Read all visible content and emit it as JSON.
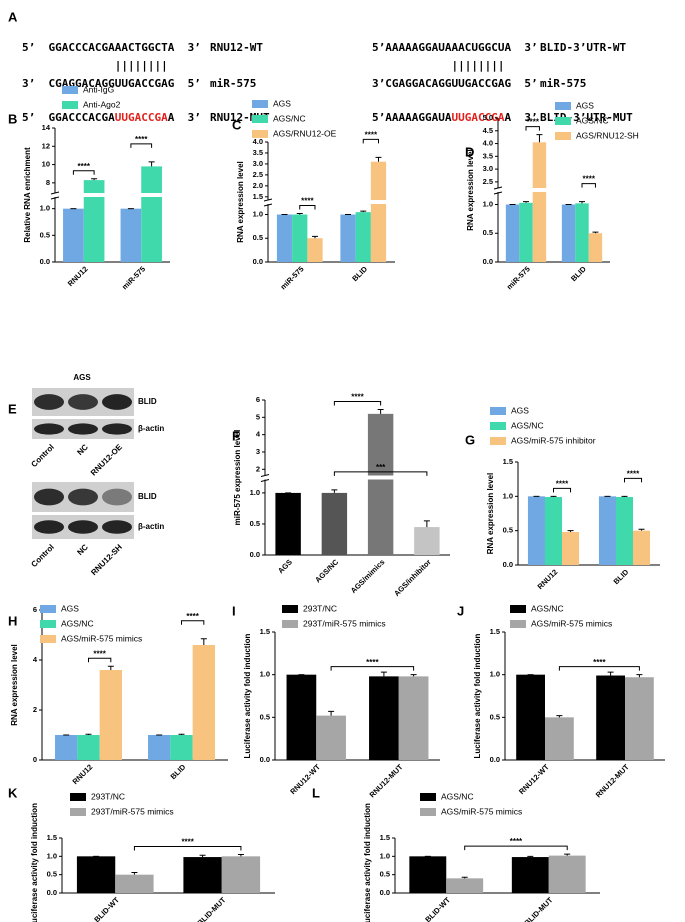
{
  "sequence_panel": {
    "label": "A",
    "groups": [
      {
        "rows": [
          {
            "segments": [
              {
                "text": "5’  GGACCCACGAAACTGGCTA  3’"
              }
            ],
            "name": "RNU12-WT"
          },
          {
            "segments": [
              {
                "text": "              ||||||||"
              }
            ]
          },
          {
            "segments": [
              {
                "text": "3’  CGAGGACAGGUUGACCGAG  5’"
              }
            ],
            "name": "miR-575"
          },
          {
            "segments": [
              {
                "text": "5’  GGACCCACGA"
              },
              {
                "text": "UUGACCGA",
                "color": "#e3211c"
              },
              {
                "text": "A  3’"
              }
            ],
            "name": "RNU12-MUT"
          }
        ]
      },
      {
        "rows": [
          {
            "segments": [
              {
                "text": "5’AAAAAGGAUAAACUGGCUA  3’"
              }
            ],
            "name": "BLID-3’UTR-WT"
          },
          {
            "segments": [
              {
                "text": "            ||||||||"
              }
            ]
          },
          {
            "segments": [
              {
                "text": "3’CGAGGACAGGUUGACCGAG  5’"
              }
            ],
            "name": "miR-575"
          },
          {
            "segments": [
              {
                "text": "5’AAAAAGGAUA"
              },
              {
                "text": "UUGACCGA",
                "color": "#e3211c"
              },
              {
                "text": "A  3’"
              }
            ],
            "name": "BLID-3’UTR-MUT"
          }
        ]
      }
    ]
  },
  "blot_panel": {
    "label": "E",
    "title": "AGS",
    "blots": [
      {
        "rows": [
          "BLID",
          "β-actin"
        ],
        "lanes": [
          "Control",
          "NC",
          "RNU12-OE"
        ]
      },
      {
        "rows": [
          "BLID",
          "β-actin"
        ],
        "lanes": [
          "Control",
          "NC",
          "RNU12-SH"
        ]
      }
    ]
  },
  "chart_data": [
    {
      "label": "B",
      "type": "bar",
      "ylabel": "Relative RNA enrichment",
      "categories": [
        "RNU12",
        "miR-575"
      ],
      "series": [
        {
          "name": "Anti-IgG",
          "color": "#6fa8e3",
          "values": [
            1,
            1
          ],
          "errors": [
            0,
            0
          ]
        },
        {
          "name": "Anti-Ago2",
          "color": "#3fd9ab",
          "values": [
            8.3,
            9.8
          ],
          "errors": [
            0.15,
            0.5
          ]
        }
      ],
      "ylim": [
        0,
        14
      ],
      "ybreak": [
        1.2,
        7
      ],
      "yticks": [
        {
          "value": 0,
          "label": "0.0"
        },
        0.5,
        {
          "value": 1,
          "label": "1.0"
        },
        8,
        10,
        12,
        14
      ],
      "annotations": [
        {
          "text": "****",
          "from": {
            "category": "RNU12",
            "series": "Anti-IgG"
          },
          "to": {
            "category": "RNU12",
            "series": "Anti-Ago2"
          }
        },
        {
          "text": "****",
          "from": {
            "category": "miR-575",
            "series": "Anti-IgG"
          },
          "to": {
            "category": "miR-575",
            "series": "Anti-Ago2"
          }
        }
      ]
    },
    {
      "label": "C",
      "type": "bar",
      "ylabel": "RNA expression level",
      "categories": [
        "miR-575",
        "BLID"
      ],
      "series": [
        {
          "name": "AGS",
          "color": "#6fa8e3",
          "values": [
            1,
            1
          ],
          "errors": [
            0,
            0
          ]
        },
        {
          "name": "AGS/NC",
          "color": "#3fd9ab",
          "values": [
            1.0,
            1.05
          ],
          "errors": [
            0.02,
            0.02
          ]
        },
        {
          "name": "AGS/RNU12-OE",
          "color": "#f8c27f",
          "values": [
            0.5,
            3.1
          ],
          "errors": [
            0.04,
            0.2
          ]
        }
      ],
      "ylim": [
        0,
        4
      ],
      "ybreak": [
        1.2,
        1.4
      ],
      "yticks": [
        {
          "value": 0,
          "label": "0.0"
        },
        0.5,
        {
          "value": 1,
          "label": "1.0"
        },
        1.5,
        {
          "value": 2,
          "label": "2.0"
        },
        2.5,
        {
          "value": 3,
          "label": "3.0"
        },
        3.5,
        {
          "value": 4,
          "label": "4.0"
        }
      ],
      "annotations": [
        {
          "text": "****",
          "from": {
            "category": "miR-575",
            "series": "AGS/NC"
          },
          "to": {
            "category": "miR-575",
            "series": "AGS/RNU12-OE"
          }
        },
        {
          "text": "****",
          "from": {
            "category": "BLID",
            "series": "AGS/NC"
          },
          "to": {
            "category": "BLID",
            "series": "AGS/RNU12-OE"
          }
        }
      ]
    },
    {
      "label": "D",
      "type": "bar",
      "ylabel": "RNA expression level",
      "categories": [
        "miR-575",
        "BLID"
      ],
      "series": [
        {
          "name": "AGS",
          "color": "#6fa8e3",
          "values": [
            1,
            1
          ],
          "errors": [
            0,
            0
          ]
        },
        {
          "name": "AGS/NC",
          "color": "#3fd9ab",
          "values": [
            1.03,
            1.02
          ],
          "errors": [
            0.02,
            0.03
          ]
        },
        {
          "name": "AGS/RNU12-SH",
          "color": "#f8c27f",
          "values": [
            4.05,
            0.5
          ],
          "errors": [
            0.3,
            0.02
          ]
        }
      ],
      "ylim": [
        0,
        5
      ],
      "ybreak": [
        1.2,
        2.3
      ],
      "yticks": [
        {
          "value": 0,
          "label": "0.0"
        },
        0.5,
        {
          "value": 1,
          "label": "1.0"
        },
        2.5,
        {
          "value": 3,
          "label": "3.0"
        },
        3.5,
        {
          "value": 4,
          "label": "4.0"
        },
        4.5,
        {
          "value": 5,
          "label": "5.0"
        }
      ],
      "annotations": [
        {
          "text": "****",
          "from": {
            "category": "miR-575",
            "series": "AGS/NC"
          },
          "to": {
            "category": "miR-575",
            "series": "AGS/RNU12-SH"
          }
        },
        {
          "text": "****",
          "from": {
            "category": "BLID",
            "series": "AGS/NC"
          },
          "to": {
            "category": "BLID",
            "series": "AGS/RNU12-SH"
          }
        }
      ]
    },
    {
      "label": "F",
      "type": "bar",
      "ylabel": "miR-575 expression level",
      "categories": [
        "AGS",
        "AGS/NC",
        "AGS/mimics",
        "AGS/inhibitor"
      ],
      "values": [
        1,
        1,
        5.2,
        0.45
      ],
      "errors": [
        0,
        0.05,
        0.25,
        0.1
      ],
      "colors": [
        "#000000",
        "#555555",
        "#777777",
        "#c4c4c4"
      ],
      "ylim": [
        0,
        6
      ],
      "ybreak": [
        1.2,
        1.7
      ],
      "yticks": [
        {
          "value": 0,
          "label": "0.0"
        },
        0.5,
        {
          "value": 1,
          "label": "1.0"
        },
        2,
        3,
        4,
        5,
        6
      ],
      "annotations": [
        {
          "text": "****",
          "from": {
            "category": "AGS/NC"
          },
          "to": {
            "category": "AGS/mimics"
          }
        },
        {
          "text": "***",
          "from": {
            "category": "AGS/NC"
          },
          "to": {
            "category": "AGS/inhibitor"
          }
        }
      ]
    },
    {
      "label": "G",
      "type": "bar",
      "ylabel": "RNA expression level",
      "categories": [
        "RNU12",
        "BLID"
      ],
      "series": [
        {
          "name": "AGS",
          "color": "#6fa8e3",
          "values": [
            1,
            1
          ],
          "errors": [
            0,
            0
          ]
        },
        {
          "name": "AGS/NC",
          "color": "#3fd9ab",
          "values": [
            0.99,
            0.99
          ],
          "errors": [
            0.01,
            0.01
          ]
        },
        {
          "name": "AGS/miR-575 inhibitor",
          "color": "#f8c27f",
          "values": [
            0.48,
            0.5
          ],
          "errors": [
            0.02,
            0.02
          ]
        }
      ],
      "ylim": [
        0,
        1.5
      ],
      "yticks": [
        {
          "value": 0,
          "label": "0.0"
        },
        0.5,
        {
          "value": 1,
          "label": "1.0"
        },
        1.5
      ],
      "annotations": [
        {
          "text": "****",
          "from": {
            "category": "RNU12",
            "series": "AGS/NC"
          },
          "to": {
            "category": "RNU12",
            "series": "AGS/miR-575 inhibitor"
          }
        },
        {
          "text": "****",
          "from": {
            "category": "BLID",
            "series": "AGS/NC"
          },
          "to": {
            "category": "BLID",
            "series": "AGS/miR-575 inhibitor"
          }
        }
      ]
    },
    {
      "label": "H",
      "type": "bar",
      "ylabel": "RNA expression level",
      "categories": [
        "RNU12",
        "BLID"
      ],
      "series": [
        {
          "name": "AGS",
          "color": "#6fa8e3",
          "values": [
            1,
            1
          ],
          "errors": [
            0,
            0
          ]
        },
        {
          "name": "AGS/NC",
          "color": "#3fd9ab",
          "values": [
            1,
            1
          ],
          "errors": [
            0.03,
            0.03
          ]
        },
        {
          "name": "AGS/miR-575 mimics",
          "color": "#f8c27f",
          "values": [
            3.6,
            4.6
          ],
          "errors": [
            0.15,
            0.25
          ]
        }
      ],
      "ylim": [
        0,
        6
      ],
      "yticks": [
        0,
        2,
        4,
        6
      ],
      "annotations": [
        {
          "text": "****",
          "from": {
            "category": "RNU12",
            "series": "AGS/NC"
          },
          "to": {
            "category": "RNU12",
            "series": "AGS/miR-575 mimics"
          }
        },
        {
          "text": "****",
          "from": {
            "category": "BLID",
            "series": "AGS/NC"
          },
          "to": {
            "category": "BLID",
            "series": "AGS/miR-575 mimics"
          }
        }
      ]
    },
    {
      "label": "I",
      "type": "bar",
      "ylabel": "Luciferase activity fold induction",
      "categories": [
        "RNU12-WT",
        "RNU12-MUT"
      ],
      "series": [
        {
          "name": "293T/NC",
          "color": "#000000",
          "values": [
            1,
            0.98
          ],
          "errors": [
            0,
            0.05
          ]
        },
        {
          "name": "293T/miR-575 mimics",
          "color": "#a6a6a6",
          "values": [
            0.52,
            0.98
          ],
          "errors": [
            0.05,
            0.02
          ]
        }
      ],
      "ylim": [
        0,
        1.5
      ],
      "yticks": [
        {
          "value": 0,
          "label": "0.0"
        },
        0.5,
        {
          "value": 1,
          "label": "1.0"
        },
        1.5
      ],
      "annotations": [
        {
          "text": "****",
          "from": {
            "category": "RNU12-WT",
            "series": "293T/miR-575 mimics"
          },
          "to": {
            "category": "RNU12-MUT",
            "series": "293T/miR-575 mimics"
          }
        }
      ]
    },
    {
      "label": "J",
      "type": "bar",
      "ylabel": "Luciferase activity fold induction",
      "categories": [
        "RNU12-WT",
        "RNU12-MUT"
      ],
      "series": [
        {
          "name": "AGS/NC",
          "color": "#000000",
          "values": [
            1,
            0.99
          ],
          "errors": [
            0,
            0.04
          ]
        },
        {
          "name": "AGS/miR-575 mimics",
          "color": "#a6a6a6",
          "values": [
            0.5,
            0.97
          ],
          "errors": [
            0.02,
            0.03
          ]
        }
      ],
      "ylim": [
        0,
        1.5
      ],
      "yticks": [
        {
          "value": 0,
          "label": "0.0"
        },
        0.5,
        {
          "value": 1,
          "label": "1.0"
        },
        1.5
      ],
      "annotations": [
        {
          "text": "****",
          "from": {
            "category": "RNU12-WT",
            "series": "AGS/miR-575 mimics"
          },
          "to": {
            "category": "RNU12-MUT",
            "series": "AGS/miR-575 mimics"
          }
        }
      ]
    },
    {
      "label": "K",
      "type": "bar",
      "ylabel": "Luciferase activity fold induction",
      "categories": [
        "BLID-WT",
        "BLID-MUT"
      ],
      "series": [
        {
          "name": "293T/NC",
          "color": "#000000",
          "values": [
            1,
            0.98
          ],
          "errors": [
            0,
            0.05
          ]
        },
        {
          "name": "293T/miR-575 mimics",
          "color": "#a6a6a6",
          "values": [
            0.5,
            1.0
          ],
          "errors": [
            0.06,
            0.05
          ]
        }
      ],
      "ylim": [
        0,
        1.5
      ],
      "yticks": [
        {
          "value": 0,
          "label": "0.0"
        },
        0.5,
        {
          "value": 1,
          "label": "1.0"
        },
        1.5
      ],
      "annotations": [
        {
          "text": "****",
          "from": {
            "category": "BLID-WT",
            "series": "293T/miR-575 mimics"
          },
          "to": {
            "category": "BLID-MUT",
            "series": "293T/miR-575 mimics"
          }
        }
      ]
    },
    {
      "label": "L",
      "type": "bar",
      "ylabel": "Luciferase activity fold induction",
      "categories": [
        "BLID-WT",
        "BLID-MUT"
      ],
      "series": [
        {
          "name": "AGS/NC",
          "color": "#000000",
          "values": [
            1,
            0.98
          ],
          "errors": [
            0,
            0.02
          ]
        },
        {
          "name": "AGS/miR-575 mimics",
          "color": "#a6a6a6",
          "values": [
            0.4,
            1.02
          ],
          "errors": [
            0.03,
            0.04
          ]
        }
      ],
      "ylim": [
        0,
        1.5
      ],
      "yticks": [
        {
          "value": 0,
          "label": "0.0"
        },
        0.5,
        {
          "value": 1,
          "label": "1.0"
        },
        1.5
      ],
      "annotations": [
        {
          "text": "****",
          "from": {
            "category": "BLID-WT",
            "series": "AGS/miR-575 mimics"
          },
          "to": {
            "category": "BLID-MUT",
            "series": "AGS/miR-575 mimics"
          }
        }
      ]
    }
  ]
}
